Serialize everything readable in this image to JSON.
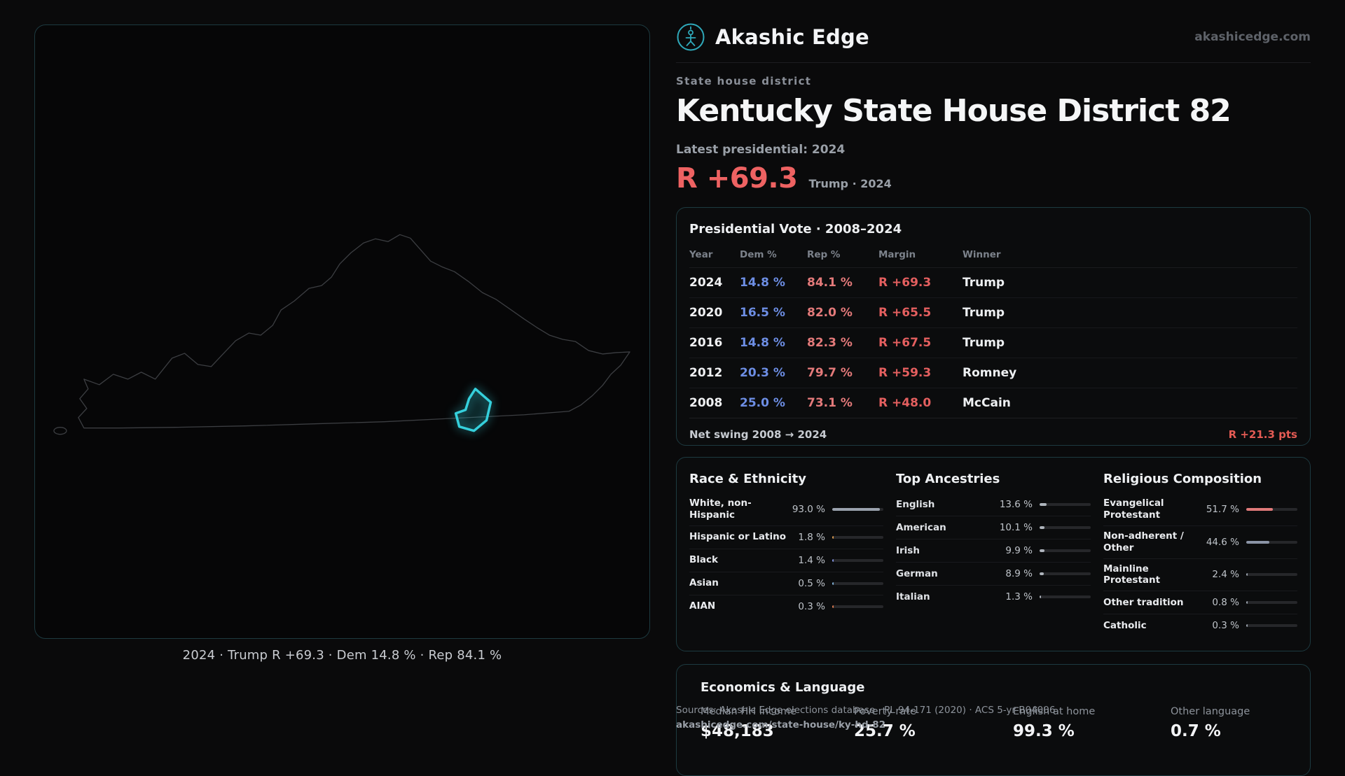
{
  "theme": {
    "accent_teal": "#2fa9ba",
    "accent_red": "#ee6262",
    "dem_blue": "#6d8ee4",
    "rep_red": "#e47a7a"
  },
  "brand": {
    "name": "Akashic Edge",
    "domain": "akashicedge.com"
  },
  "page": {
    "eyebrow": "State house district",
    "title": "Kentucky State House District 82",
    "latest_label": "Latest presidential: 2024",
    "headline_margin": "R +69.3",
    "headline_context": "Trump · 2024"
  },
  "map": {
    "caption": "2024 · Trump R +69.3 · Dem 14.8 % · Rep 84.1 %"
  },
  "presidential": {
    "title": "Presidential Vote · 2008–2024",
    "columns": [
      "Year",
      "Dem %",
      "Rep %",
      "Margin",
      "Winner"
    ],
    "rows": [
      {
        "year": "2024",
        "dem": "14.8 %",
        "rep": "84.1 %",
        "margin": "R +69.3",
        "winner": "Trump"
      },
      {
        "year": "2020",
        "dem": "16.5 %",
        "rep": "82.0 %",
        "margin": "R +65.5",
        "winner": "Trump"
      },
      {
        "year": "2016",
        "dem": "14.8 %",
        "rep": "82.3 %",
        "margin": "R +67.5",
        "winner": "Trump"
      },
      {
        "year": "2012",
        "dem": "20.3 %",
        "rep": "79.7 %",
        "margin": "R +59.3",
        "winner": "Romney"
      },
      {
        "year": "2008",
        "dem": "25.0 %",
        "rep": "73.1 %",
        "margin": "R +48.0",
        "winner": "McCain"
      }
    ],
    "net_swing_label": "Net swing 2008 → 2024",
    "net_swing_value": "R +21.3 pts"
  },
  "race": {
    "title": "Race & Ethnicity",
    "rows": [
      {
        "label": "White, non-Hispanic",
        "value": "93.0 %",
        "pct": 93.0,
        "color": "#9aa2ad"
      },
      {
        "label": "Hispanic or Latino",
        "value": "1.8 %",
        "pct": 1.8,
        "color": "#d99a4e"
      },
      {
        "label": "Black",
        "value": "1.4 %",
        "pct": 1.4,
        "color": "#8091dc"
      },
      {
        "label": "Asian",
        "value": "0.5 %",
        "pct": 0.5,
        "color": "#7fb0d6"
      },
      {
        "label": "AIAN",
        "value": "0.3 %",
        "pct": 0.3,
        "color": "#d9784e"
      }
    ]
  },
  "ancestries": {
    "title": "Top Ancestries",
    "rows": [
      {
        "label": "English",
        "value": "13.6 %",
        "pct": 13.6,
        "color": "#aeb4bc"
      },
      {
        "label": "American",
        "value": "10.1 %",
        "pct": 10.1,
        "color": "#aeb4bc"
      },
      {
        "label": "Irish",
        "value": "9.9 %",
        "pct": 9.9,
        "color": "#aeb4bc"
      },
      {
        "label": "German",
        "value": "8.9 %",
        "pct": 8.9,
        "color": "#aeb4bc"
      },
      {
        "label": "Italian",
        "value": "1.3 %",
        "pct": 1.3,
        "color": "#aeb4bc"
      }
    ]
  },
  "religion": {
    "title": "Religious Composition",
    "rows": [
      {
        "label": "Evangelical Protestant",
        "value": "51.7 %",
        "pct": 51.7,
        "color": "#e07a7a"
      },
      {
        "label": "Non-adherent / Other",
        "value": "44.6 %",
        "pct": 44.6,
        "color": "#8b94a6"
      },
      {
        "label": "Mainline Protestant",
        "value": "2.4 %",
        "pct": 2.4,
        "color": "#9aa2ad"
      },
      {
        "label": "Other tradition",
        "value": "0.8 %",
        "pct": 0.8,
        "color": "#9aa2ad"
      },
      {
        "label": "Catholic",
        "value": "0.3 %",
        "pct": 0.3,
        "color": "#9aa2ad"
      }
    ]
  },
  "economics": {
    "title": "Economics & Language",
    "stats": [
      {
        "label": "Median HH income",
        "value": "$48,183"
      },
      {
        "label": "Poverty rate",
        "value": "25.7 %"
      },
      {
        "label": "English at home",
        "value": "99.3 %"
      },
      {
        "label": "Other language",
        "value": "0.7 %"
      }
    ]
  },
  "sources": {
    "line1": "Sources: Akashic Edge elections database · PL 94-171 (2020) · ACS 5-yr B04006",
    "line2": "akashicedge.com/state-house/ky-hd-82"
  }
}
